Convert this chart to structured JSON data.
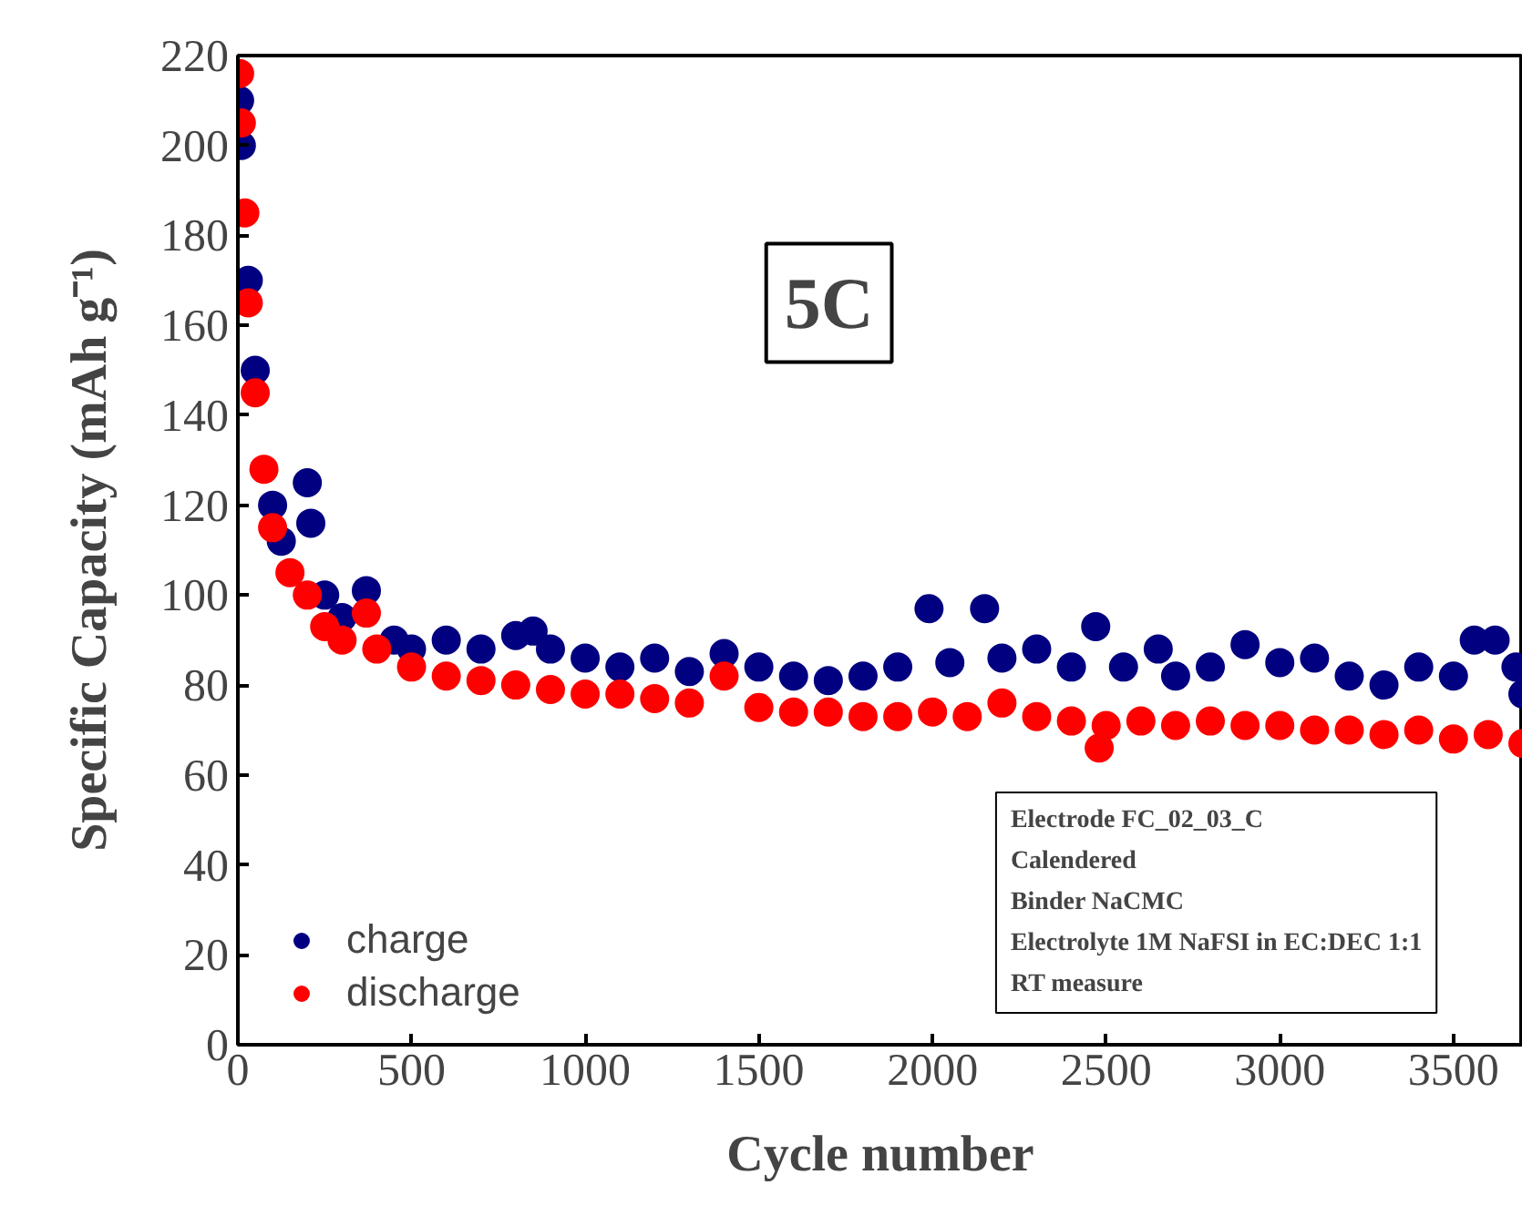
{
  "chart_data": {
    "type": "scatter",
    "xlabel": "Cycle number",
    "ylabel": "Specific Capacity (mAh g⁻¹)",
    "xlim": [
      0,
      3700
    ],
    "ylim": [
      0,
      220
    ],
    "xticks": [
      0,
      500,
      1000,
      1500,
      2000,
      2500,
      3000,
      3500
    ],
    "yticks": [
      0,
      20,
      40,
      60,
      80,
      100,
      120,
      140,
      160,
      180,
      200,
      220
    ],
    "grid": false,
    "legend": "bottom left",
    "marker": "circle",
    "annotations": [
      "5C",
      "Electrode FC_02_03_C",
      "Calendered",
      "Binder NaCMC",
      "Electrolyte 1M NaFSI in EC:DEC 1:1",
      "RT measure"
    ],
    "series": [
      {
        "name": "charge",
        "color": "#000080",
        "x": [
          5,
          10,
          30,
          50,
          100,
          125,
          200,
          210,
          250,
          300,
          370,
          450,
          500,
          600,
          700,
          800,
          850,
          900,
          1000,
          1100,
          1200,
          1300,
          1400,
          1500,
          1600,
          1700,
          1800,
          1900,
          1990,
          2050,
          2150,
          2200,
          2300,
          2400,
          2470,
          2550,
          2650,
          2700,
          2800,
          2900,
          3000,
          3100,
          3200,
          3300,
          3400,
          3500,
          3560,
          3620,
          3680,
          3700
        ],
        "values": [
          210,
          200,
          170,
          150,
          120,
          112,
          125,
          116,
          100,
          95,
          101,
          90,
          88,
          90,
          88,
          91,
          92,
          88,
          86,
          84,
          86,
          83,
          87,
          84,
          82,
          81,
          82,
          84,
          97,
          85,
          97,
          86,
          88,
          84,
          93,
          84,
          88,
          82,
          84,
          89,
          85,
          86,
          82,
          80,
          84,
          82,
          90,
          90,
          84,
          78
        ]
      },
      {
        "name": "discharge",
        "color": "#ff0000",
        "x": [
          5,
          10,
          20,
          30,
          50,
          75,
          100,
          150,
          200,
          250,
          300,
          370,
          400,
          500,
          600,
          700,
          800,
          900,
          1000,
          1100,
          1200,
          1300,
          1400,
          1500,
          1600,
          1700,
          1800,
          1900,
          2000,
          2100,
          2200,
          2300,
          2400,
          2480,
          2500,
          2600,
          2700,
          2800,
          2900,
          3000,
          3100,
          3200,
          3300,
          3400,
          3500,
          3600,
          3700
        ],
        "values": [
          216,
          205,
          185,
          165,
          145,
          128,
          115,
          105,
          100,
          93,
          90,
          96,
          88,
          84,
          82,
          81,
          80,
          79,
          78,
          78,
          77,
          76,
          82,
          75,
          74,
          74,
          73,
          73,
          74,
          73,
          76,
          73,
          72,
          66,
          71,
          72,
          71,
          72,
          71,
          71,
          70,
          70,
          69,
          70,
          68,
          69,
          67
        ]
      }
    ]
  }
}
